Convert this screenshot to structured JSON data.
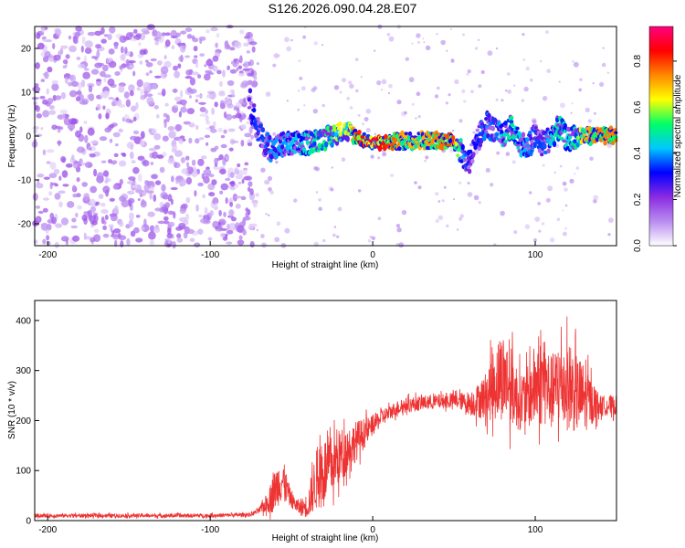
{
  "title": "S126.2026.090.04.28.E07",
  "chart_data": [
    {
      "type": "heatmap",
      "title": "S126.2026.090.04.28.E07",
      "xlabel": "Height of straight line (km)",
      "ylabel": "Frequency (Hz)",
      "xlim": [
        -208,
        150
      ],
      "ylim": [
        -25,
        25
      ],
      "xticks": [
        -200,
        -100,
        0,
        100
      ],
      "xtick_labels": [
        "-200",
        "-100",
        "0",
        "100"
      ],
      "yticks": [
        -20,
        -10,
        0,
        10,
        20
      ],
      "ytick_labels": [
        "-20",
        "-10",
        "0",
        "10",
        "20"
      ],
      "grid": false,
      "colorbar": {
        "label": "Normalized spectral amplitude",
        "range": [
          0.0,
          0.95
        ],
        "ticks": [
          0.0,
          0.2,
          0.4,
          0.6,
          0.8
        ],
        "tick_labels": [
          "0.0",
          "0.2",
          "0.4",
          "0.6",
          "0.8"
        ],
        "colormap": [
          "#ffffff",
          "#b98cf0",
          "#8a2be2",
          "#0000ff",
          "#00c8ff",
          "#00ff66",
          "#ffff00",
          "#ff8800",
          "#ff0000",
          "#ff007f"
        ]
      },
      "noise_region": {
        "x_range": [
          -208,
          -72
        ],
        "y_range": [
          -25,
          25
        ],
        "level": 0.12
      },
      "ridge": {
        "x": [
          -76,
          -72,
          -68,
          -62,
          -55,
          -45,
          -35,
          -25,
          -20,
          -15,
          -10,
          -5,
          0,
          10,
          20,
          30,
          40,
          50,
          52,
          55,
          58,
          60,
          63,
          66,
          70,
          75,
          80,
          85,
          90,
          95,
          100,
          105,
          110,
          115,
          120,
          125,
          130,
          140,
          150
        ],
        "y": [
          8,
          3,
          -1,
          -3,
          -2,
          -2,
          -1,
          0,
          1,
          1,
          0,
          -1,
          -1.5,
          -1.5,
          -1,
          -1,
          -1,
          -1,
          -2,
          -4,
          -6,
          -5,
          -3,
          0,
          3,
          1,
          0,
          2,
          -1,
          -3,
          0,
          -2,
          0,
          2,
          -1,
          0,
          0,
          0,
          0
        ],
        "amplitude": [
          0.25,
          0.35,
          0.35,
          0.4,
          0.4,
          0.45,
          0.5,
          0.55,
          0.65,
          0.6,
          0.8,
          0.85,
          0.9,
          0.8,
          0.7,
          0.7,
          0.75,
          0.8,
          0.6,
          0.45,
          0.35,
          0.3,
          0.3,
          0.35,
          0.4,
          0.35,
          0.45,
          0.5,
          0.45,
          0.4,
          0.35,
          0.35,
          0.45,
          0.5,
          0.45,
          0.5,
          0.7,
          0.75,
          0.75
        ]
      }
    },
    {
      "type": "line",
      "xlabel": "Height of straight line (km)",
      "ylabel": "SNR (10 * v/v)",
      "xlim": [
        -208,
        150
      ],
      "ylim": [
        0,
        440
      ],
      "xticks": [
        -200,
        -100,
        0,
        100
      ],
      "xtick_labels": [
        "-200",
        "-100",
        "0",
        "100"
      ],
      "yticks": [
        0,
        100,
        200,
        300,
        400
      ],
      "ytick_labels": [
        "0",
        "100",
        "200",
        "300",
        "400"
      ],
      "grid": false,
      "series": [
        {
          "name": "SNR",
          "color": "#ee3333",
          "envelope_x": [
            -208,
            -150,
            -100,
            -75,
            -70,
            -65,
            -62,
            -58,
            -55,
            -50,
            -45,
            -40,
            -35,
            -30,
            -25,
            -20,
            -15,
            -10,
            -5,
            0,
            5,
            10,
            15,
            20,
            30,
            40,
            50,
            55,
            60,
            65,
            70,
            75,
            80,
            85,
            90,
            95,
            100,
            105,
            110,
            115,
            120,
            125,
            130,
            140,
            150
          ],
          "envelope_y": [
            10,
            10,
            10,
            12,
            20,
            35,
            50,
            75,
            80,
            40,
            25,
            30,
            80,
            100,
            110,
            130,
            145,
            160,
            175,
            190,
            205,
            215,
            225,
            230,
            235,
            238,
            240,
            238,
            235,
            240,
            250,
            275,
            290,
            270,
            240,
            245,
            270,
            280,
            255,
            275,
            270,
            255,
            245,
            230,
            230
          ],
          "spread_y": [
            4,
            4,
            4,
            4,
            6,
            20,
            35,
            45,
            40,
            15,
            15,
            25,
            60,
            70,
            60,
            55,
            45,
            40,
            30,
            20,
            18,
            15,
            15,
            15,
            15,
            15,
            15,
            18,
            25,
            35,
            50,
            75,
            90,
            80,
            60,
            60,
            85,
            90,
            75,
            90,
            90,
            80,
            70,
            20,
            20
          ]
        }
      ]
    }
  ]
}
